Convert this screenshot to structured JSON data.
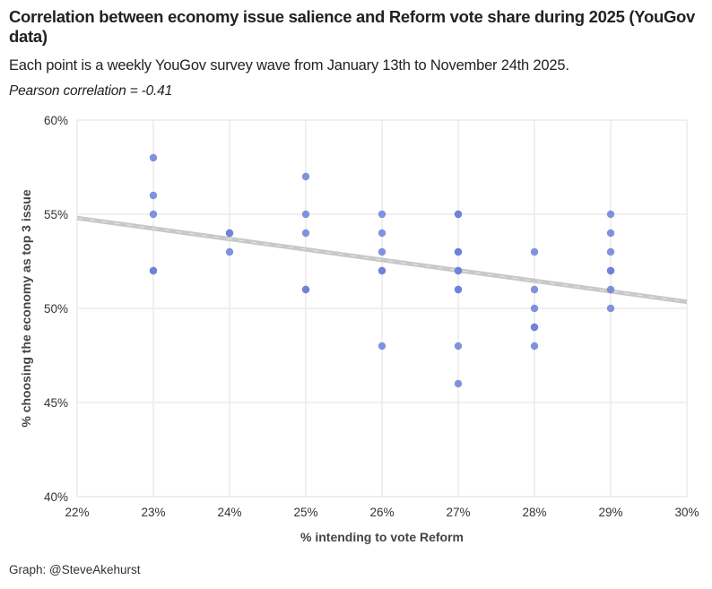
{
  "chart_data": {
    "type": "scatter",
    "title": "Correlation between economy issue salience and Reform vote share during 2025 (YouGov data)",
    "subtitle": "Each point is a weekly YouGov survey wave from January 13th to November 24th 2025.",
    "annotation": "Pearson correlation = -0.41",
    "xlabel": "% intending to vote Reform",
    "ylabel": "% choosing the economy as top 3 issue",
    "xlim": [
      22,
      30
    ],
    "ylim": [
      40,
      60
    ],
    "x_ticks": [
      22,
      23,
      24,
      25,
      26,
      27,
      28,
      29,
      30
    ],
    "y_ticks": [
      40,
      45,
      50,
      55,
      60
    ],
    "x_tick_labels": [
      "22%",
      "23%",
      "24%",
      "25%",
      "26%",
      "27%",
      "28%",
      "29%",
      "30%"
    ],
    "y_tick_labels": [
      "40%",
      "45%",
      "50%",
      "55%",
      "60%"
    ],
    "grid": true,
    "point_color": "#6b80d8",
    "trendline_color": "#c8c8c8",
    "points": [
      {
        "x": 23,
        "y": 58
      },
      {
        "x": 23,
        "y": 56
      },
      {
        "x": 23,
        "y": 55
      },
      {
        "x": 23,
        "y": 52
      },
      {
        "x": 23,
        "y": 52
      },
      {
        "x": 24,
        "y": 54
      },
      {
        "x": 24,
        "y": 54
      },
      {
        "x": 24,
        "y": 53
      },
      {
        "x": 25,
        "y": 57
      },
      {
        "x": 25,
        "y": 55
      },
      {
        "x": 25,
        "y": 54
      },
      {
        "x": 25,
        "y": 51
      },
      {
        "x": 25,
        "y": 51
      },
      {
        "x": 26,
        "y": 55
      },
      {
        "x": 26,
        "y": 54
      },
      {
        "x": 26,
        "y": 53
      },
      {
        "x": 26,
        "y": 52
      },
      {
        "x": 26,
        "y": 52
      },
      {
        "x": 26,
        "y": 48
      },
      {
        "x": 27,
        "y": 55
      },
      {
        "x": 27,
        "y": 55
      },
      {
        "x": 27,
        "y": 53
      },
      {
        "x": 27,
        "y": 53
      },
      {
        "x": 27,
        "y": 52
      },
      {
        "x": 27,
        "y": 52
      },
      {
        "x": 27,
        "y": 51
      },
      {
        "x": 27,
        "y": 51
      },
      {
        "x": 27,
        "y": 48
      },
      {
        "x": 27,
        "y": 46
      },
      {
        "x": 28,
        "y": 53
      },
      {
        "x": 28,
        "y": 51
      },
      {
        "x": 28,
        "y": 50
      },
      {
        "x": 28,
        "y": 49
      },
      {
        "x": 28,
        "y": 49
      },
      {
        "x": 28,
        "y": 48
      },
      {
        "x": 29,
        "y": 55
      },
      {
        "x": 29,
        "y": 54
      },
      {
        "x": 29,
        "y": 53
      },
      {
        "x": 29,
        "y": 52
      },
      {
        "x": 29,
        "y": 52
      },
      {
        "x": 29,
        "y": 51
      },
      {
        "x": 29,
        "y": 50
      }
    ],
    "trendline": {
      "x": [
        22,
        30
      ],
      "y": [
        54.8,
        50.35
      ]
    }
  },
  "footer": {
    "credit": "Graph: @SteveAkehurst"
  }
}
